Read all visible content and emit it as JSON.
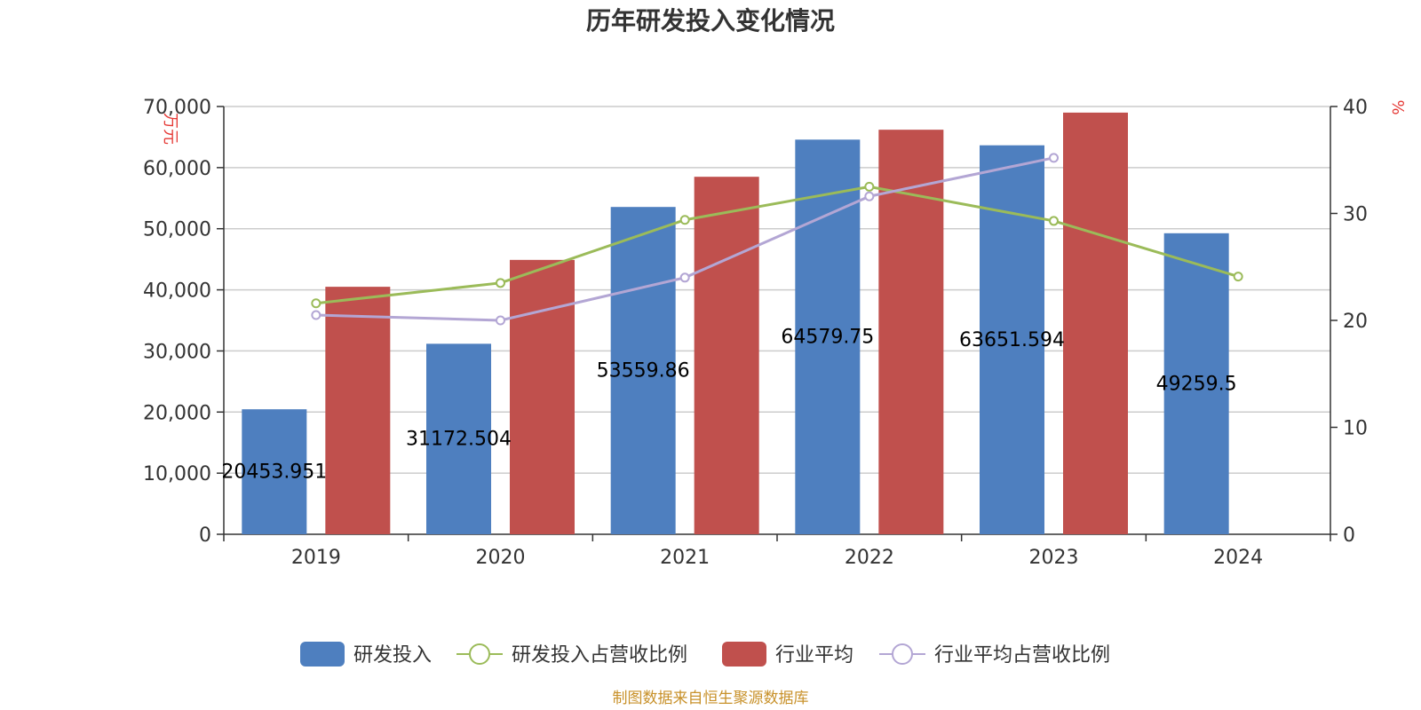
{
  "chart_data": {
    "type": "bar",
    "title": "历年研发投入变化情况",
    "categories": [
      "2019",
      "2020",
      "2021",
      "2022",
      "2023",
      "2024"
    ],
    "y_left": {
      "unit": "万元",
      "min": 0,
      "max": 70000,
      "ticks": [
        0,
        10000,
        20000,
        30000,
        40000,
        50000,
        60000,
        70000
      ],
      "tick_labels": [
        "0",
        "10,000",
        "20,000",
        "30,000",
        "40,000",
        "50,000",
        "60,000",
        "70,000"
      ]
    },
    "y_right": {
      "unit": "%",
      "min": 0,
      "max": 40,
      "ticks": [
        0,
        10,
        20,
        30,
        40
      ],
      "tick_labels": [
        "0",
        "10",
        "20",
        "30",
        "40"
      ]
    },
    "series": [
      {
        "name": "研发投入",
        "kind": "bar",
        "axis": "left",
        "color": "#4e7fbf",
        "values": [
          20453.951,
          31172.504,
          53559.86,
          64579.75,
          63651.594,
          49259.5
        ],
        "labels": [
          "20453.951",
          "31172.504",
          "53559.86",
          "64579.75",
          "63651.594",
          "49259.5"
        ]
      },
      {
        "name": "研发投入占营收比例",
        "kind": "line",
        "axis": "right",
        "color": "#9bbb59",
        "values": [
          21.6,
          23.5,
          29.4,
          32.5,
          29.3,
          24.1
        ]
      },
      {
        "name": "行业平均",
        "kind": "bar",
        "axis": "left",
        "color": "#c0504d",
        "values": [
          40500,
          44900,
          58500,
          66200,
          69000,
          null
        ]
      },
      {
        "name": "行业平均占营收比例",
        "kind": "line",
        "axis": "right",
        "color": "#b3a6d4",
        "values": [
          20.5,
          20.0,
          24.0,
          31.6,
          35.2,
          null
        ]
      }
    ],
    "grid": true,
    "legend_position": "bottom"
  },
  "source_text": "制图数据来自恒生聚源数据库"
}
